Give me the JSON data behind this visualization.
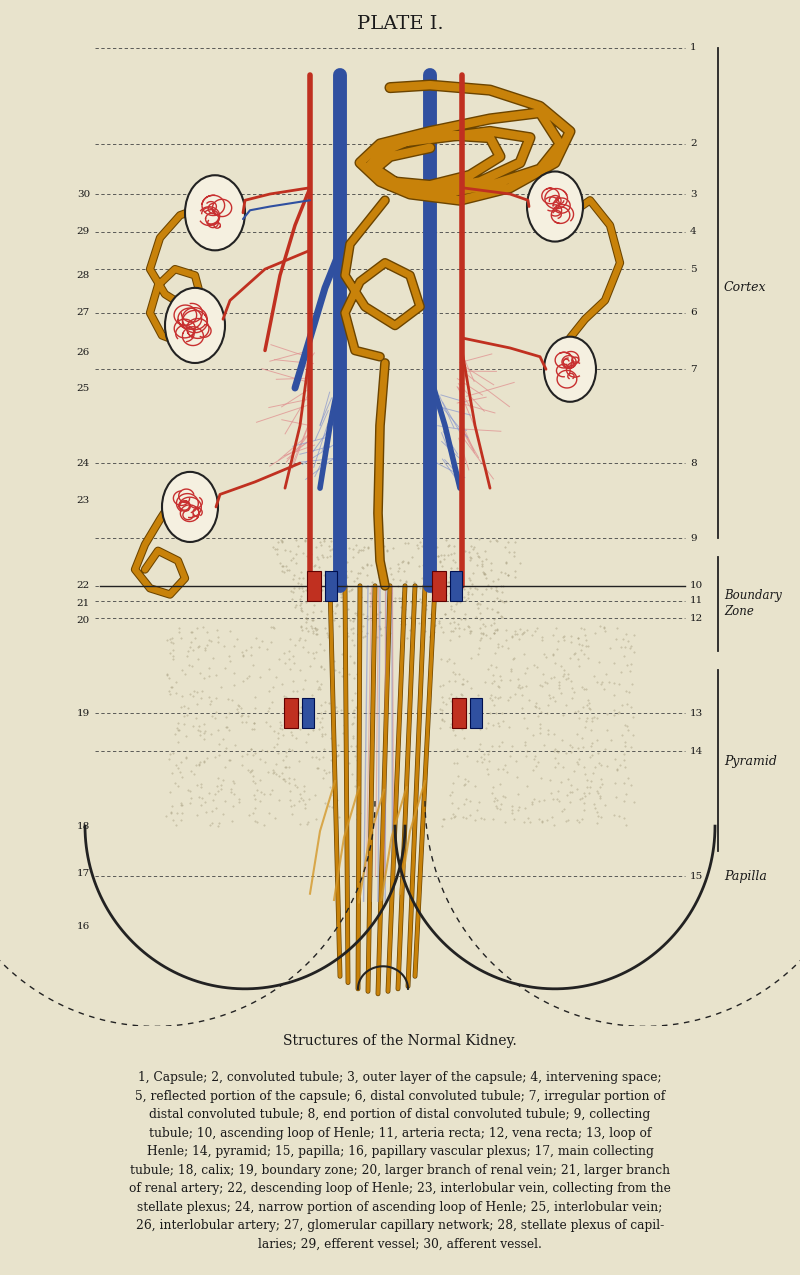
{
  "bg_color": "#e8e3cc",
  "title": "PLATE I.",
  "subtitle": "Structures of the Normal Kidney.",
  "caption_line1": "1, Capsule; 2, convoluted tubule; 3, outer layer of the capsule; 4, intervening space;",
  "caption_line2": "5, reflected portion of the capsule; 6, distal convoluted tubule; 7, irregular portion of",
  "caption_line3": "distal convoluted tubule; 8, end portion of distal convoluted tubule; 9, collecting",
  "caption_line4": "tubule; 10, ascending loop of Henle; 11, arteria recta; 12, vena recta; 13, loop of",
  "caption_line5": "Henle; 14, pyramid; 15, papilla; 16, papillary vascular plexus; 17, main collecting",
  "caption_line6": "tubule; 18, calix; 19, boundary zone; 20, larger branch of renal vein; 21, larger branch",
  "caption_line7": "of renal artery; 22, descending loop of Henle; 23, interlobular vein, collecting from the",
  "caption_line8": "stellate plexus; 24, narrow portion of ascending loop of Henle; 25, interlobular vein;",
  "caption_line9": "26, interlobular artery; 27, glomerular capillary network; 28, stellate plexus of capil-",
  "caption_line10": "laries; 29, efferent vessel; 30, afferent vessel.",
  "colors": {
    "tubule_orange": "#c8820a",
    "tubule_dark": "#6b4400",
    "tubule_light": "#d4982a",
    "artery_red": "#c03020",
    "vein_blue": "#3050a0",
    "glom_red": "#c83030",
    "capsule_dark": "#1a1a1a",
    "line_dark": "#222222",
    "text_dark": "#1a1a1a",
    "pink_cap": "#e09090",
    "blue_cap": "#8090cc",
    "stipple": "#9a9070"
  }
}
